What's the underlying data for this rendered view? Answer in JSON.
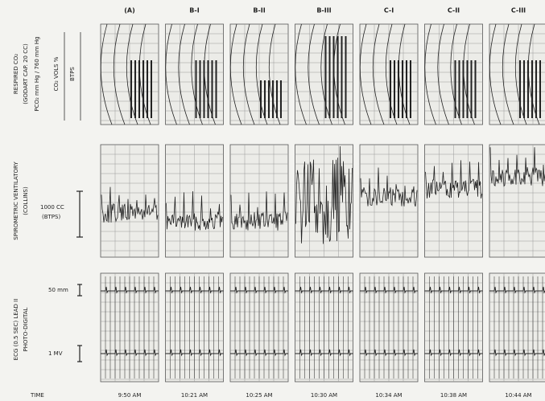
{
  "columns": [
    {
      "label": "(A)",
      "time": "9:50 AM"
    },
    {
      "label": "B-I",
      "time": "10:21 AM"
    },
    {
      "label": "B-II",
      "time": "10:25 AM"
    },
    {
      "label": "B-III",
      "time": "10:30 AM"
    },
    {
      "label": "C-I",
      "time": "10:34 AM"
    },
    {
      "label": "C-II",
      "time": "10:38 AM"
    },
    {
      "label": "C-III",
      "time": "10:44 AM"
    }
  ],
  "rows": [
    {
      "labels": [
        "RESPIRED CO₂",
        "(GODART CAP. 20 CC)",
        "PCO₂ mm Hg / 760 mm Hg",
        "CO₂ VOLS %",
        "BTPS"
      ]
    },
    {
      "labels": [
        "SPIROMETRIC VENTILATORY",
        "(COLLINS)"
      ],
      "scale": [
        "1000 CC",
        "(BTPS)"
      ]
    },
    {
      "labels": [
        "ECG (0.5 SEC) LEAD II",
        "PHOTO-DIGITAL"
      ],
      "scale": [
        "50 mm",
        "1 MV"
      ]
    }
  ],
  "time_label": "TIME"
}
